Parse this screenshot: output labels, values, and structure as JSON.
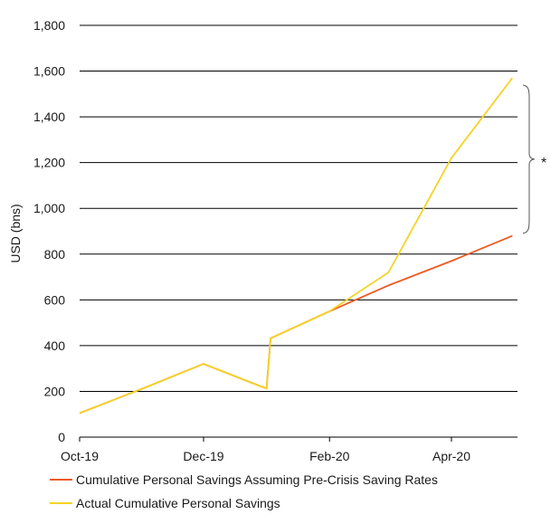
{
  "chart_data": {
    "type": "line",
    "title": "",
    "xlabel": "",
    "ylabel": "USD (bns)",
    "ylim": [
      0,
      1800
    ],
    "y_ticks": [
      0,
      200,
      400,
      600,
      800,
      1000,
      1200,
      1400,
      1600,
      1800
    ],
    "y_tick_labels": [
      "0",
      "200",
      "400",
      "600",
      "800",
      "1,000",
      "1,200",
      "1,400",
      "1,600",
      "1,800"
    ],
    "x_ticks": [
      "2019-10",
      "2019-12",
      "2020-02",
      "2020-04"
    ],
    "x_tick_labels": [
      "Oct-19",
      "Dec-19",
      "Feb-20",
      "Apr-20"
    ],
    "grid": "horizontal",
    "legend_position": "bottom",
    "annotation": "*",
    "colors": {
      "pre_crisis": "#f05a22",
      "actual": "#f5d327",
      "grid": "#000000",
      "bracket": "#555555"
    },
    "series": [
      {
        "name": "Cumulative Personal Savings Assuming Pre-Crisis Saving Rates",
        "x": [
          "2019-10",
          "2019-11",
          "2019-12",
          "2020-01",
          "2020-01-03",
          "2020-02",
          "2020-03",
          "2020-04",
          "2020-05"
        ],
        "values": [
          105,
          212,
          320,
          212,
          432,
          550,
          663,
          770,
          880
        ]
      },
      {
        "name": "Actual Cumulative Personal Savings",
        "x": [
          "2019-10",
          "2019-11",
          "2019-12",
          "2020-01",
          "2020-01-03",
          "2020-02",
          "2020-03",
          "2020-04",
          "2020-05"
        ],
        "values": [
          105,
          212,
          320,
          212,
          432,
          550,
          720,
          1220,
          1570
        ]
      }
    ]
  }
}
